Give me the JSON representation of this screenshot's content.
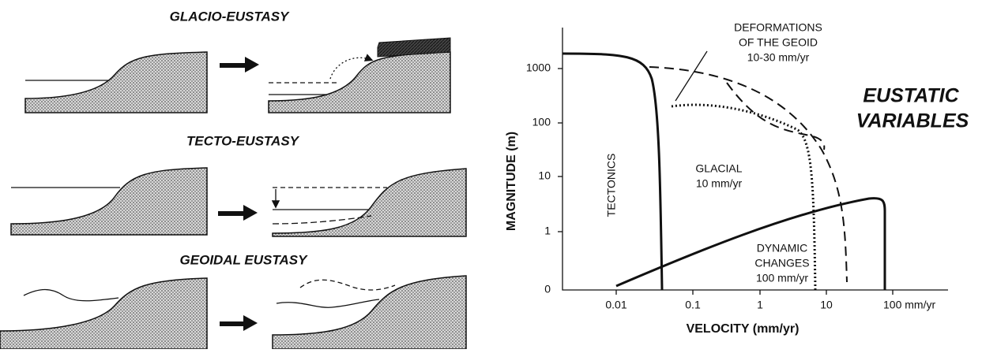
{
  "left_panels": [
    {
      "title": "GLACIO-EUSTASY"
    },
    {
      "title": "TECTO-EUSTASY"
    },
    {
      "title": "GEOIDAL EUSTASY"
    }
  ],
  "plot": {
    "y_axis_label": "MAGNITUDE (m)",
    "x_axis_label": "VELOCITY (mm/yr)",
    "y_ticks": [
      "1000",
      "100",
      "10",
      "1",
      "0"
    ],
    "x_ticks": [
      "0.01",
      "0.1",
      "1",
      "10",
      "100 mm/yr"
    ],
    "regions": {
      "geoid": [
        "DEFORMATIONS",
        "OF THE GEOID",
        "10-30 mm/yr"
      ],
      "tectonics": "TECTONICS",
      "glacial": [
        "GLACIAL",
        "10 mm/yr"
      ],
      "dynamic": [
        "DYNAMIC",
        "CHANGES",
        "100 mm/yr"
      ]
    }
  },
  "side_title": [
    "EUSTATIC",
    "VARIABLES"
  ]
}
